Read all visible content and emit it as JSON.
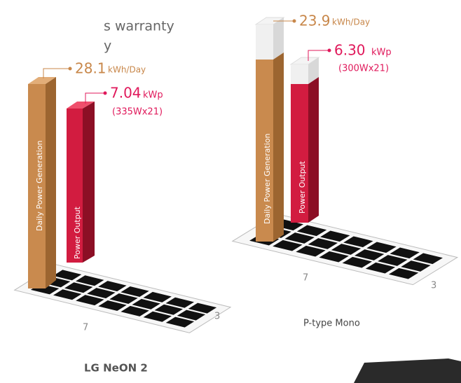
{
  "header": {
    "lines": [
      "s warranty",
      "y"
    ]
  },
  "left": {
    "generation": {
      "label": "Daily Power Generation",
      "value": "28.1",
      "unit": "kWh/Day"
    },
    "output": {
      "label": "Power Output",
      "value": "7.04",
      "unit": "kWp",
      "detail": "(335Wx21)"
    },
    "grid": {
      "long": "7",
      "short": "3"
    },
    "caption": "LG NeON 2"
  },
  "right": {
    "generation": {
      "label": "Daily Power Generation",
      "value": "23.9",
      "unit": "kWh/Day"
    },
    "output": {
      "label": "Power Output",
      "value": "6.30",
      "unit": "kWp",
      "detail": "(300Wx21)"
    },
    "grid": {
      "long": "7",
      "short": "3"
    },
    "caption": "P-type Mono"
  }
}
